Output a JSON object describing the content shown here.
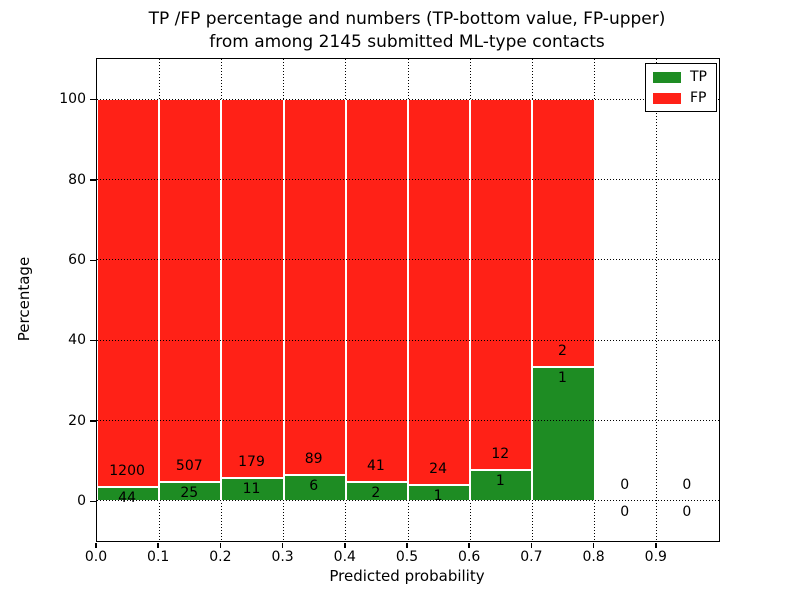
{
  "figure": {
    "title_line1": "TP /FP percentage and numbers (TP-bottom value, FP-upper)",
    "title_line2": "from among 2145 submitted ML-type contacts",
    "xlabel": "Predicted probability",
    "ylabel": "Percentage"
  },
  "legend": {
    "tp_label": "TP",
    "fp_label": "FP"
  },
  "colors": {
    "tp": "#1e8c23",
    "fp": "#ff2117",
    "text": "#000000",
    "frame": "#000000",
    "background": "#ffffff",
    "bar_edge": "#ffffff",
    "grid": "#000000"
  },
  "chart_data": {
    "type": "bar",
    "stacked": true,
    "title": "TP /FP percentage and numbers (TP-bottom value, FP-upper) from among 2145 submitted ML-type contacts",
    "xlabel": "Predicted probability",
    "ylabel": "Percentage",
    "xlim": [
      0.0,
      1.0
    ],
    "ylim": [
      -10,
      110
    ],
    "grid": true,
    "legend_position": "upper right",
    "note": "Each bin stacks to 100%; TP on bottom (green), FP on top (red); labels show raw counts (FP above boundary, TP below)",
    "total_contacts": 2145,
    "xticks": [
      {
        "label": "0.0",
        "value": 0.0
      },
      {
        "label": "0.1",
        "value": 0.1
      },
      {
        "label": "0.2",
        "value": 0.2
      },
      {
        "label": "0.3",
        "value": 0.3
      },
      {
        "label": "0.4",
        "value": 0.4
      },
      {
        "label": "0.5",
        "value": 0.5
      },
      {
        "label": "0.6",
        "value": 0.6
      },
      {
        "label": "0.7",
        "value": 0.7
      },
      {
        "label": "0.8",
        "value": 0.8
      },
      {
        "label": "0.9",
        "value": 0.9
      }
    ],
    "yticks": [
      0,
      20,
      40,
      60,
      80,
      100
    ],
    "series": [
      {
        "name": "TP",
        "color": "#1e8c23"
      },
      {
        "name": "FP",
        "color": "#ff2117"
      }
    ],
    "bins": [
      {
        "range": [
          0.0,
          0.1
        ],
        "tp": 44,
        "fp": 1200
      },
      {
        "range": [
          0.1,
          0.2
        ],
        "tp": 25,
        "fp": 507
      },
      {
        "range": [
          0.2,
          0.3
        ],
        "tp": 11,
        "fp": 179
      },
      {
        "range": [
          0.3,
          0.4
        ],
        "tp": 6,
        "fp": 89
      },
      {
        "range": [
          0.4,
          0.5
        ],
        "tp": 2,
        "fp": 41
      },
      {
        "range": [
          0.5,
          0.6
        ],
        "tp": 1,
        "fp": 24
      },
      {
        "range": [
          0.6,
          0.7
        ],
        "tp": 1,
        "fp": 12
      },
      {
        "range": [
          0.7,
          0.8
        ],
        "tp": 1,
        "fp": 2
      },
      {
        "range": [
          0.8,
          0.9
        ],
        "tp": 0,
        "fp": 0
      },
      {
        "range": [
          0.9,
          1.0
        ],
        "tp": 0,
        "fp": 0
      }
    ]
  }
}
